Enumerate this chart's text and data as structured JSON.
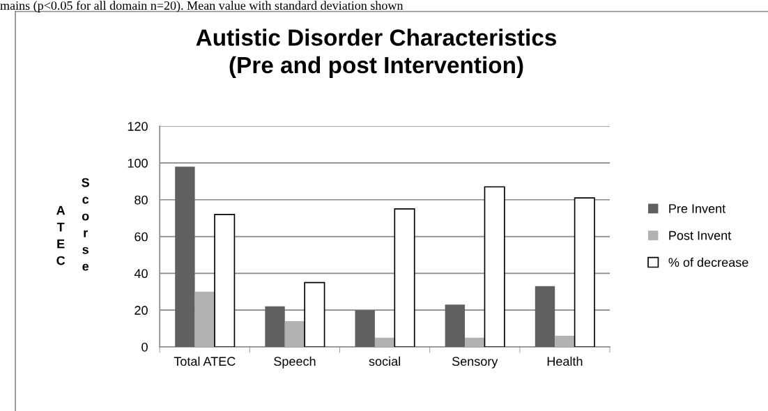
{
  "chart_data": {
    "type": "bar",
    "title": "Autistic Disorder Characteristics\n(Pre and post Intervention)",
    "ylabel": "ATEC Scorse",
    "annotations": [
      "mains (p<0.05 for all domain n=20). Mean value with standard deviation shown"
    ],
    "categories": [
      "Total ATEC",
      "Speech",
      "social",
      "Sensory",
      "Health"
    ],
    "series": [
      {
        "name": "Pre Invent",
        "color": "#606060",
        "values": [
          98,
          22,
          20,
          23,
          33
        ]
      },
      {
        "name": "Post Invent",
        "color": "#b2b2b2",
        "values": [
          30,
          14,
          5,
          5,
          6
        ]
      },
      {
        "name": "% of decrease",
        "color": "#ffffff",
        "values": [
          72,
          35,
          75,
          87,
          81
        ]
      }
    ],
    "ylim": [
      0,
      120
    ],
    "yticks": [
      0,
      20,
      40,
      60,
      80,
      100,
      120
    ],
    "grid": "y",
    "legend": "right"
  }
}
